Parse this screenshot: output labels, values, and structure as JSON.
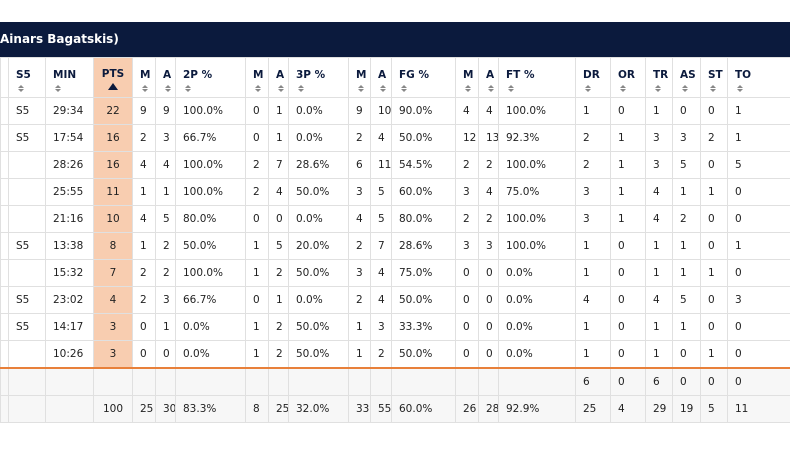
{
  "header": {
    "title": "Ainars Bagatskis)"
  },
  "table": {
    "columns": [
      "S5",
      "MIN",
      "PTS",
      "M",
      "A",
      "2P %",
      "M",
      "A",
      "3P %",
      "M",
      "A",
      "FG %",
      "M",
      "A",
      "FT %",
      "DR",
      "OR",
      "TR",
      "AS",
      "ST",
      "TO"
    ],
    "rows": [
      [
        "S5",
        "29:34",
        22,
        9,
        9,
        "100.0%",
        0,
        1,
        "0.0%",
        9,
        10,
        "90.0%",
        4,
        4,
        "100.0%",
        1,
        0,
        1,
        0,
        0,
        1
      ],
      [
        "S5",
        "17:54",
        16,
        2,
        3,
        "66.7%",
        0,
        1,
        "0.0%",
        2,
        4,
        "50.0%",
        12,
        13,
        "92.3%",
        2,
        1,
        3,
        3,
        2,
        1
      ],
      [
        null,
        "28:26",
        16,
        4,
        4,
        "100.0%",
        2,
        7,
        "28.6%",
        6,
        11,
        "54.5%",
        2,
        2,
        "100.0%",
        2,
        1,
        3,
        5,
        0,
        5
      ],
      [
        null,
        "25:55",
        11,
        1,
        1,
        "100.0%",
        2,
        4,
        "50.0%",
        3,
        5,
        "60.0%",
        3,
        4,
        "75.0%",
        3,
        1,
        4,
        1,
        1,
        0
      ],
      [
        null,
        "21:16",
        10,
        4,
        5,
        "80.0%",
        0,
        0,
        "0.0%",
        4,
        5,
        "80.0%",
        2,
        2,
        "100.0%",
        3,
        1,
        4,
        2,
        0,
        0
      ],
      [
        "S5",
        "13:38",
        8,
        1,
        2,
        "50.0%",
        1,
        5,
        "20.0%",
        2,
        7,
        "28.6%",
        3,
        3,
        "100.0%",
        1,
        0,
        1,
        1,
        0,
        1
      ],
      [
        null,
        "15:32",
        7,
        2,
        2,
        "100.0%",
        1,
        2,
        "50.0%",
        3,
        4,
        "75.0%",
        0,
        0,
        "0.0%",
        1,
        0,
        1,
        1,
        1,
        0
      ],
      [
        "S5",
        "23:02",
        4,
        2,
        3,
        "66.7%",
        0,
        1,
        "0.0%",
        2,
        4,
        "50.0%",
        0,
        0,
        "0.0%",
        4,
        0,
        4,
        5,
        0,
        3
      ],
      [
        "S5",
        "14:17",
        3,
        0,
        1,
        "0.0%",
        1,
        2,
        "50.0%",
        1,
        3,
        "33.3%",
        0,
        0,
        "0.0%",
        1,
        0,
        1,
        1,
        0,
        0
      ],
      [
        null,
        "10:26",
        3,
        0,
        0,
        "0.0%",
        1,
        2,
        "50.0%",
        1,
        2,
        "50.0%",
        0,
        0,
        "0.0%",
        1,
        0,
        1,
        0,
        1,
        0
      ]
    ],
    "team_row": [
      null,
      null,
      null,
      null,
      null,
      null,
      null,
      null,
      null,
      null,
      null,
      null,
      null,
      null,
      null,
      6,
      0,
      6,
      0,
      0,
      0
    ],
    "total_row": [
      null,
      null,
      100,
      25,
      30,
      "83.3%",
      8,
      25,
      "32.0%",
      33,
      55,
      "60.0%",
      26,
      28,
      "92.9%",
      25,
      4,
      29,
      19,
      5,
      11
    ]
  }
}
